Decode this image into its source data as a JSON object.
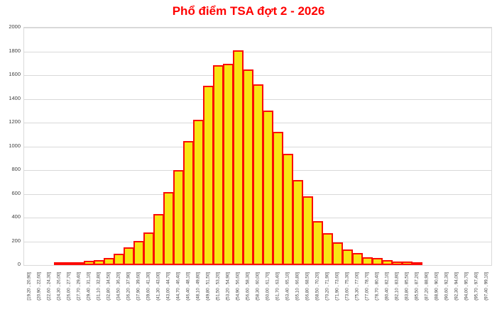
{
  "title": "Phổ điểm TSA đợt 2 - 2026",
  "colors": {
    "title_text": "#ff0000",
    "bar_fill": "#f8e513",
    "bar_border": "#fb0b06",
    "gridline": "#d9d9d9",
    "plot_border": "#d9d9d9",
    "axis_text": "#404040",
    "background": "#ffffff"
  },
  "chart_data": {
    "type": "bar",
    "subtype": "histogram",
    "title": "Phổ điểm TSA đợt 2 - 2026",
    "xlabel": "",
    "ylabel": "",
    "ylim": [
      0,
      2000
    ],
    "y_ticks": [
      0,
      200,
      400,
      600,
      800,
      1000,
      1200,
      1400,
      1600,
      1800,
      2000
    ],
    "grid": "horizontal",
    "legend_position": "none",
    "bar_gap": 0,
    "categories": [
      "[19,20 , 20,90]",
      "(20,90 , 22,60]",
      "(22,60 , 24,30]",
      "(24,30 , 26,00]",
      "(26,00 , 27,70]",
      "(27,70 , 29,40]",
      "(29,40 , 31,10]",
      "(31,10 , 32,80]",
      "(32,80 , 34,50]",
      "(34,50 , 36,20]",
      "(36,20 , 37,90]",
      "(37,90 , 39,60]",
      "(39,60 , 41,30]",
      "(41,30 , 43,00]",
      "(43,00 , 44,70]",
      "(44,70 , 46,40]",
      "(46,40 , 48,10]",
      "(48,10 , 49,80]",
      "(49,80 , 51,50]",
      "(51,50 , 53,20]",
      "(53,20 , 54,90]",
      "(54,90 , 56,60]",
      "(56,60 , 58,30]",
      "(58,30 , 60,00]",
      "(60,00 , 61,70]",
      "(61,70 , 63,40]",
      "(63,40 , 65,10]",
      "(65,10 , 66,80]",
      "(66,80 , 68,50]",
      "(68,50 , 70,20]",
      "(70,20 , 71,90]",
      "(71,90 , 73,60]",
      "(73,60 , 75,30]",
      "(75,30 , 77,00]",
      "(77,00 , 78,70]",
      "(78,70 , 80,40]",
      "(80,40 , 82,10]",
      "(82,10 , 83,80]",
      "(83,80 , 85,50]",
      "(85,50 , 87,20]",
      "(87,20 , 88,90]",
      "(88,90 , 90,60]",
      "(90,60 , 92,30]",
      "(92,30 , 94,00]",
      "(94,00 , 95,70]",
      "(95,70 , 97,40]",
      "(97,40 , 99,10]"
    ],
    "values": [
      0,
      0,
      0,
      4,
      8,
      13,
      21,
      31,
      46,
      85,
      135,
      191,
      263,
      420,
      601,
      787,
      1034,
      1210,
      1498,
      1671,
      1683,
      1799,
      1638,
      1510,
      1292,
      1110,
      928,
      705,
      565,
      356,
      254,
      177,
      118,
      89,
      52,
      45,
      28,
      20,
      16,
      13,
      0,
      0,
      0,
      0,
      0,
      0,
      0
    ]
  }
}
